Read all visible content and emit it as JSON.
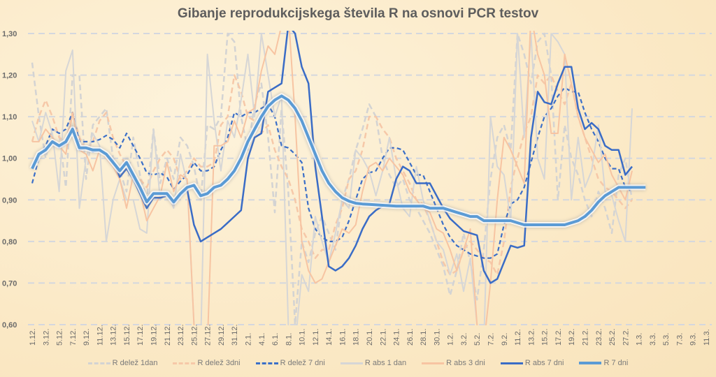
{
  "chart_data": {
    "type": "line",
    "title": "Gibanje reprodukcijskega števila R na osnovi PCR testov",
    "xlabel": "",
    "ylabel": "",
    "ylim": [
      0.6,
      1.3
    ],
    "y_ticks": [
      "0,60",
      "0,70",
      "0,80",
      "0,90",
      "1,00",
      "1,10",
      "1,20",
      "1,30"
    ],
    "grid": true,
    "legend_position": "bottom",
    "x_labels": [
      "1.12.",
      "3.12.",
      "5.12.",
      "7.12.",
      "9.12.",
      "11.12.",
      "13.12.",
      "15.12.",
      "17.12.",
      "19.12.",
      "21.12.",
      "23.12.",
      "25.12.",
      "27.12.",
      "29.12.",
      "31.12.",
      "2.1.",
      "4.1.",
      "6.1.",
      "8.1.",
      "10.1.",
      "12.1.",
      "14.1.",
      "16.1.",
      "18.1.",
      "20.1.",
      "22.1.",
      "24.1.",
      "26.1.",
      "28.1.",
      "30.1.",
      "1.2.",
      "3.2.",
      "5.2.",
      "7.2.",
      "9.2.",
      "11.2.",
      "13.2.",
      "15.2.",
      "17.2.",
      "19.2.",
      "21.2.",
      "23.2.",
      "25.2.",
      "27.2.",
      "1.3.",
      "3.3.",
      "5.3.",
      "7.3.",
      "9.3.",
      "11.3."
    ],
    "x_start": "1.12.",
    "x_days": 101,
    "series": [
      {
        "name": "R delež 1dan",
        "color": "#d3d3d3",
        "dash": "8,5",
        "width": 2.5,
        "values": [
          1.23,
          1.1,
          1.0,
          1.07,
          1.06,
          0.93,
          1.2,
          1.2,
          0.95,
          1.08,
          1.1,
          1.12,
          1.0,
          0.97,
          0.92,
          1.05,
          0.96,
          0.9,
          1.07,
          0.94,
          1.0,
          0.95,
          1.05,
          1.03,
          0.98,
          0.9,
          1.08,
          1.07,
          1.1,
          1.3,
          1.28,
          1.1,
          1.02,
          1.13,
          1.18,
          1.05,
          0.87,
          1.12,
          0.92,
          0.6,
          0.8,
          0.75,
          0.82,
          0.86,
          0.82,
          0.78,
          0.9,
          0.95,
          1.02,
          1.07,
          1.13,
          1.1,
          1.0,
          0.96,
          0.93,
          0.95,
          0.9,
          0.88,
          0.85,
          0.82,
          0.78,
          0.74,
          0.67,
          0.73,
          0.82,
          0.75,
          0.66,
          0.78,
          0.95,
          1.05,
          1.08,
          1.02,
          1.3,
          1.25,
          1.18,
          1.28,
          1.3,
          1.2,
          0.9,
          1.08,
          1.0,
          0.96,
          0.9,
          0.86,
          0.92,
          0.88,
          0.82,
          0.96,
          1.0,
          0.9
        ]
      },
      {
        "name": "R delež 3dni",
        "color": "#f6c8a8",
        "dash": "8,5",
        "width": 2.5,
        "values": [
          1.04,
          1.1,
          1.14,
          1.1,
          1.05,
          1.04,
          1.11,
          1.05,
          1.02,
          1.04,
          1.09,
          1.11,
          1.05,
          1.01,
          0.98,
          0.96,
          0.95,
          0.93,
          0.97,
          1.0,
          1.02,
          1.0,
          0.95,
          0.97,
          1.0,
          0.98,
          0.98,
          0.99,
          1.08,
          1.1,
          1.2,
          1.16,
          1.1,
          1.09,
          1.06,
          1.08,
          1.02,
          0.98,
          0.95,
          0.9,
          0.83,
          0.8,
          0.76,
          0.78,
          0.78,
          0.84,
          0.88,
          0.95,
          0.97,
          1.02,
          1.1,
          1.1,
          1.07,
          1.05,
          1.0,
          0.97,
          0.94,
          0.9,
          0.89,
          0.85,
          0.8,
          0.75,
          0.72,
          0.73,
          0.78,
          0.8,
          0.78,
          0.76,
          0.75,
          0.72,
          0.8,
          0.93,
          1.0,
          1.06,
          1.1,
          1.2,
          1.18,
          1.2,
          1.16,
          1.13,
          1.18,
          1.1,
          1.05,
          1.0,
          0.95,
          0.93,
          0.92,
          0.9,
          0.88,
          0.9
        ]
      },
      {
        "name": "R delež 7 dni",
        "color": "#3b6fc8",
        "dash": "6,4",
        "width": 2.2,
        "values": [
          0.94,
          1.0,
          1.03,
          1.07,
          1.06,
          1.07,
          1.11,
          1.04,
          1.04,
          1.04,
          1.045,
          1.055,
          1.045,
          1.025,
          1.06,
          1.03,
          1.0,
          0.965,
          0.96,
          0.965,
          0.955,
          0.925,
          0.945,
          0.96,
          0.99,
          0.97,
          0.97,
          0.98,
          1.02,
          1.05,
          1.11,
          1.1,
          1.11,
          1.11,
          1.12,
          1.13,
          1.1,
          1.03,
          1.025,
          1.01,
          0.99,
          0.88,
          0.83,
          0.81,
          0.8,
          0.8,
          0.81,
          0.85,
          0.9,
          0.95,
          0.965,
          0.97,
          1.0,
          1.025,
          1.025,
          1.02,
          0.99,
          0.96,
          0.96,
          0.92,
          0.88,
          0.84,
          0.81,
          0.79,
          0.78,
          0.77,
          0.765,
          0.76,
          0.76,
          0.77,
          0.84,
          0.89,
          0.9,
          0.93,
          0.99,
          1.05,
          1.1,
          1.12,
          1.15,
          1.17,
          1.16,
          1.16,
          1.11,
          1.07,
          1.04,
          1.0,
          0.975,
          0.975,
          0.93,
          0.92
        ]
      },
      {
        "name": "R abs 1 dan",
        "color": "#d6d6d6",
        "dash": "",
        "width": 2,
        "values": [
          1.09,
          1.04,
          1.11,
          1.06,
          0.92,
          1.21,
          1.26,
          0.88,
          1.0,
          1.06,
          1.03,
          0.8,
          0.9,
          0.95,
          0.9,
          0.9,
          0.83,
          0.82,
          1.07,
          0.9,
          0.92,
          0.88,
          1.01,
          0.94,
          0.6,
          0.55,
          1.25,
          1.09,
          0.97,
          1.09,
          1.05,
          1.14,
          1.25,
          1.1,
          1.3,
          1.2,
          1.1,
          1.15,
          0.6,
          0.55,
          0.72,
          0.68,
          0.86,
          0.8,
          0.75,
          0.82,
          0.9,
          0.88,
          1.02,
          1.0,
          0.97,
          0.91,
          0.97,
          1.05,
          0.95,
          0.88,
          0.86,
          0.98,
          0.9,
          0.85,
          0.8,
          0.78,
          0.72,
          0.77,
          0.68,
          0.76,
          0.6,
          0.55,
          1.1,
          0.98,
          0.96,
          0.85,
          1.3,
          1.05,
          1.3,
          1.0,
          0.95,
          1.3,
          1.28,
          1.25,
          0.9,
          1.05,
          0.93,
          0.97,
          1.08,
          0.92,
          0.91,
          0.85,
          0.8,
          1.12
        ]
      },
      {
        "name": "R abs 3 dni",
        "color": "#f7c4a2",
        "dash": "",
        "width": 2,
        "values": [
          1.04,
          1.04,
          1.07,
          1.05,
          1.03,
          1.01,
          1.11,
          1.02,
          1.01,
          0.97,
          1.02,
          1.0,
          0.98,
          0.95,
          0.88,
          0.96,
          0.92,
          0.85,
          0.88,
          0.91,
          0.99,
          0.92,
          0.96,
          0.95,
          0.6,
          0.55,
          0.55,
          1.03,
          1.03,
          1.04,
          1.09,
          1.05,
          1.11,
          1.12,
          1.21,
          1.27,
          1.25,
          1.32,
          1.35,
          1.1,
          0.8,
          0.73,
          0.7,
          0.71,
          0.75,
          0.79,
          0.83,
          0.82,
          0.84,
          0.92,
          0.98,
          0.99,
          0.97,
          1.0,
          0.98,
          0.96,
          0.92,
          0.9,
          0.88,
          0.87,
          0.83,
          0.82,
          0.78,
          0.73,
          0.78,
          0.83,
          0.6,
          0.55,
          0.7,
          0.9,
          1.05,
          1.02,
          0.98,
          0.94,
          1.35,
          1.25,
          1.2,
          1.06,
          1.06,
          1.25,
          1.18,
          1.1,
          1.05,
          1.02,
          0.99,
          1.01,
          0.96,
          0.93,
          0.9,
          0.97
        ]
      },
      {
        "name": "R abs 7 dni",
        "color": "#3a6cc6",
        "dash": "",
        "width": 2.5,
        "values": [
          0.98,
          1.01,
          1.02,
          1.04,
          1.025,
          1.035,
          1.075,
          1.02,
          1.025,
          1.015,
          1.02,
          1.01,
          0.995,
          0.955,
          0.975,
          0.95,
          0.915,
          0.88,
          0.905,
          0.905,
          0.91,
          0.89,
          0.91,
          0.925,
          0.84,
          0.8,
          0.81,
          0.82,
          0.83,
          0.845,
          0.86,
          0.875,
          1.0,
          1.05,
          1.06,
          1.16,
          1.17,
          1.18,
          1.32,
          1.3,
          1.22,
          1.18,
          0.98,
          0.86,
          0.74,
          0.73,
          0.74,
          0.76,
          0.79,
          0.83,
          0.86,
          0.875,
          0.885,
          0.89,
          0.95,
          0.98,
          0.97,
          0.94,
          0.94,
          0.94,
          0.91,
          0.88,
          0.855,
          0.84,
          0.825,
          0.82,
          0.815,
          0.73,
          0.7,
          0.71,
          0.75,
          0.79,
          0.785,
          0.79,
          1.05,
          1.16,
          1.135,
          1.13,
          1.18,
          1.22,
          1.22,
          1.12,
          1.07,
          1.085,
          1.07,
          1.03,
          1.02,
          1.02,
          0.96,
          0.98
        ]
      },
      {
        "name": "R 7 dni",
        "color": "#5b9bd5",
        "dash": "",
        "width": 4,
        "values": [
          0.975,
          1.01,
          1.02,
          1.04,
          1.03,
          1.04,
          1.07,
          1.025,
          1.025,
          1.02,
          1.02,
          1.01,
          0.99,
          0.97,
          0.99,
          0.96,
          0.93,
          0.895,
          0.915,
          0.915,
          0.915,
          0.895,
          0.915,
          0.93,
          0.935,
          0.91,
          0.915,
          0.93,
          0.935,
          0.95,
          0.97,
          1.0,
          1.04,
          1.07,
          1.1,
          1.125,
          1.14,
          1.15,
          1.14,
          1.12,
          1.09,
          1.05,
          1.01,
          0.97,
          0.94,
          0.92,
          0.905,
          0.897,
          0.892,
          0.89,
          0.889,
          0.888,
          0.887,
          0.886,
          0.885,
          0.885,
          0.885,
          0.885,
          0.885,
          0.88,
          0.88,
          0.88,
          0.875,
          0.87,
          0.865,
          0.86,
          0.86,
          0.85,
          0.85,
          0.85,
          0.85,
          0.85,
          0.845,
          0.84,
          0.84,
          0.84,
          0.84,
          0.84,
          0.84,
          0.84,
          0.845,
          0.85,
          0.86,
          0.875,
          0.895,
          0.91,
          0.92,
          0.93,
          0.93,
          0.93,
          0.93,
          0.93
        ]
      }
    ]
  }
}
